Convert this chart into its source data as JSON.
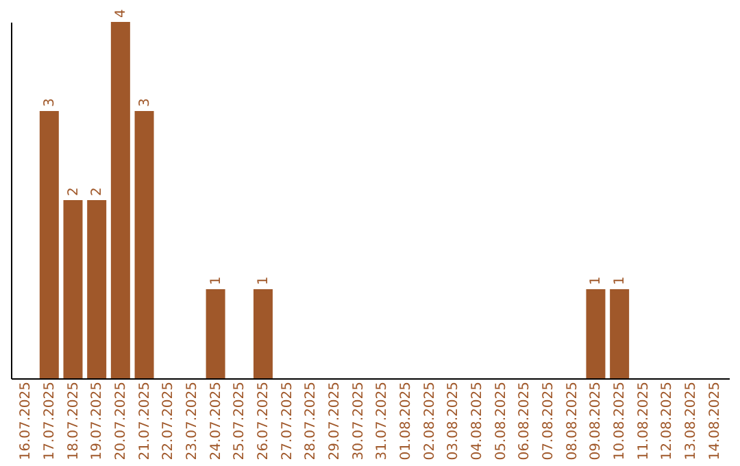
{
  "chart_data": {
    "type": "bar",
    "categories": [
      "16.07.2025",
      "17.07.2025",
      "18.07.2025",
      "19.07.2025",
      "20.07.2025",
      "21.07.2025",
      "22.07.2025",
      "23.07.2025",
      "24.07.2025",
      "25.07.2025",
      "26.07.2025",
      "27.07.2025",
      "28.07.2025",
      "29.07.2025",
      "30.07.2025",
      "31.07.2025",
      "01.08.2025",
      "02.08.2025",
      "03.08.2025",
      "04.08.2025",
      "05.08.2025",
      "06.08.2025",
      "07.08.2025",
      "08.08.2025",
      "09.08.2025",
      "10.08.2025",
      "11.08.2025",
      "12.08.2025",
      "13.08.2025",
      "14.08.2025"
    ],
    "values": [
      0,
      3,
      2,
      2,
      4,
      3,
      0,
      0,
      1,
      0,
      1,
      0,
      0,
      0,
      0,
      0,
      0,
      0,
      0,
      0,
      0,
      0,
      0,
      0,
      1,
      1,
      0,
      0,
      0,
      0
    ],
    "value_labels": [
      null,
      "3",
      "2",
      "2",
      "4",
      "3",
      null,
      null,
      "1",
      null,
      "1",
      null,
      null,
      null,
      null,
      null,
      null,
      null,
      null,
      null,
      null,
      null,
      null,
      null,
      "1",
      "1",
      null,
      null,
      null,
      null
    ],
    "color": "#a0582a",
    "tick_labels": "x",
    "grid": false
  }
}
